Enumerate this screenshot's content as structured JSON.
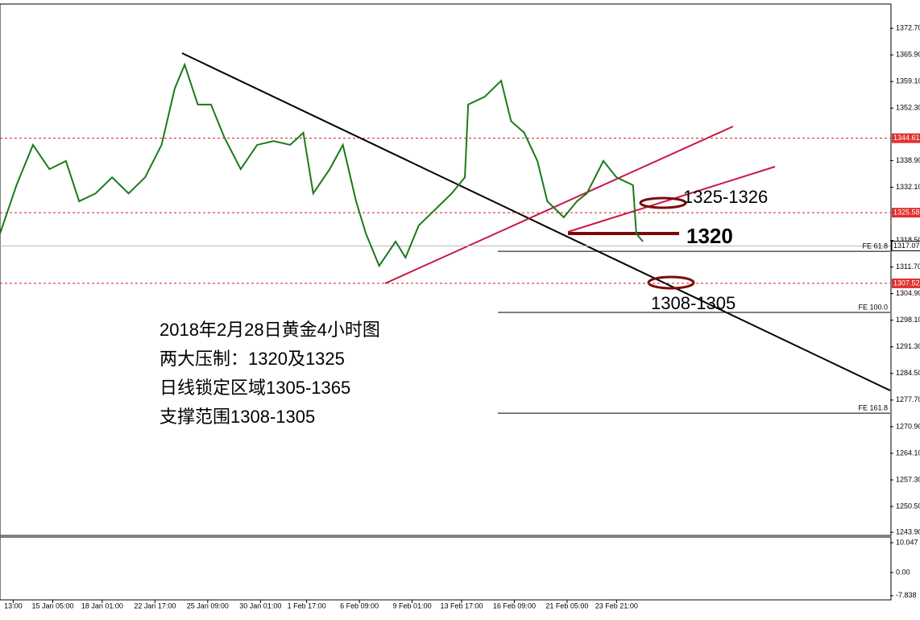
{
  "chart_data": {
    "type": "line",
    "color": "#1a7a1a",
    "x": [
      0,
      5,
      10,
      15,
      20,
      24,
      29,
      34,
      39,
      44,
      49,
      53,
      56,
      60,
      64,
      68,
      73,
      78,
      83,
      88,
      92,
      95,
      100,
      104,
      108,
      111,
      115,
      120,
      123,
      127,
      132,
      137,
      141,
      142,
      147,
      152,
      155,
      159,
      163,
      166,
      171,
      175,
      178,
      183,
      187,
      192,
      193,
      195
    ],
    "values": [
      1320.2,
      1332.6,
      1342.9,
      1336.7,
      1338.8,
      1328.5,
      1330.5,
      1334.6,
      1330.5,
      1334.6,
      1342.9,
      1357.3,
      1363.4,
      1353.2,
      1353.2,
      1344.9,
      1336.7,
      1342.9,
      1343.9,
      1342.9,
      1346.0,
      1330.5,
      1336.7,
      1342.9,
      1328.5,
      1320.2,
      1312.0,
      1318.2,
      1314.1,
      1322.3,
      1326.4,
      1330.5,
      1334.6,
      1353.2,
      1355.2,
      1359.3,
      1349.0,
      1346.0,
      1338.8,
      1328.5,
      1324.4,
      1328.5,
      1330.5,
      1338.8,
      1334.6,
      1332.6,
      1320.2,
      1318.2
    ],
    "xlim": [
      0,
      270
    ],
    "xticks": [
      {
        "value": 4,
        "label": "13:00"
      },
      {
        "value": 16,
        "label": "15 Jan 05:00"
      },
      {
        "value": 31,
        "label": "18 Jan 01:00"
      },
      {
        "value": 47,
        "label": "22 Jan 17:00"
      },
      {
        "value": 63,
        "label": "25 Jan 09:00"
      },
      {
        "value": 79,
        "label": "30 Jan 01:00"
      },
      {
        "value": 93,
        "label": "1 Feb 17:00"
      },
      {
        "value": 109,
        "label": "6 Feb 09:00"
      },
      {
        "value": 125,
        "label": "9 Feb 01:00"
      },
      {
        "value": 140,
        "label": "13 Feb 17:00"
      },
      {
        "value": 156,
        "label": "16 Feb 09:00"
      },
      {
        "value": 172,
        "label": "21 Feb 05:00"
      },
      {
        "value": 187,
        "label": "23 Feb 21:00"
      }
    ],
    "ylim": [
      1243.1,
      1378.9
    ],
    "yticks": [
      {
        "value": 1372.7,
        "label": "1372.70"
      },
      {
        "value": 1365.9,
        "label": "1365.90"
      },
      {
        "value": 1359.1,
        "label": "1359.10"
      },
      {
        "value": 1352.3,
        "label": "1352.30"
      },
      {
        "value": 1338.9,
        "label": "1338.90"
      },
      {
        "value": 1332.1,
        "label": "1332.10"
      },
      {
        "value": 1318.5,
        "label": "1318.50"
      },
      {
        "value": 1311.7,
        "label": "1311.70"
      },
      {
        "value": 1304.9,
        "label": "1304.90"
      },
      {
        "value": 1298.1,
        "label": "1298.10"
      },
      {
        "value": 1291.3,
        "label": "1291.30"
      },
      {
        "value": 1284.5,
        "label": "1284.50"
      },
      {
        "value": 1277.7,
        "label": "1277.70"
      },
      {
        "value": 1270.9,
        "label": "1270.90"
      },
      {
        "value": 1264.1,
        "label": "1264.10"
      },
      {
        "value": 1257.3,
        "label": "1257.30"
      },
      {
        "value": 1250.5,
        "label": "1250.50"
      },
      {
        "value": 1243.9,
        "label": "1243.90"
      }
    ],
    "price_labels": [
      {
        "value": 1344.61,
        "label": "1344.61"
      },
      {
        "value": 1325.58,
        "label": "1325.58"
      },
      {
        "value": 1317.07,
        "label": "1317.07"
      },
      {
        "value": 1307.52,
        "label": "1307.52"
      }
    ],
    "fe_levels": [
      {
        "value": 1315.7,
        "label": "FE 61.8"
      },
      {
        "value": 1300.1,
        "label": "FE 100.0"
      },
      {
        "value": 1274.35,
        "label": "FE 161.8"
      }
    ],
    "annotations": [
      "1325-1326",
      "1320",
      "1308-1305"
    ],
    "text_block": [
      "2018年2月28日黄金4小时图",
      "两大压制：1320及1325",
      "日线锁定区域1305-1365",
      "支撑范围1308-1305"
    ],
    "macd": {
      "ylim": [
        -9.23,
        11.95
      ],
      "yticks": [
        {
          "value": 10.047,
          "label": "10.047"
        },
        {
          "value": 0,
          "label": "0.00"
        },
        {
          "value": -7.838,
          "label": "-7.838"
        }
      ]
    }
  }
}
